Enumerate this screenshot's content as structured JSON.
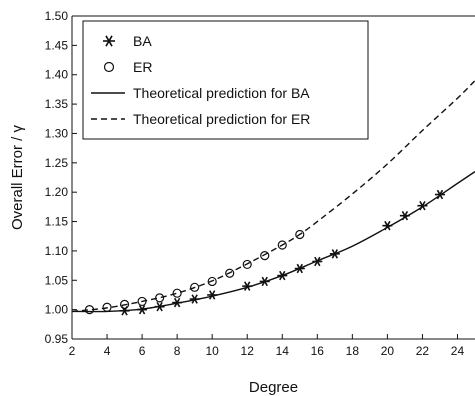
{
  "chart_data": {
    "type": "scatter",
    "title": "",
    "xlabel": "Degree",
    "ylabel": "Overall Error / γ",
    "xlim": [
      2,
      25
    ],
    "ylim": [
      0.95,
      1.5
    ],
    "xticks": [
      2,
      4,
      6,
      8,
      10,
      12,
      14,
      16,
      18,
      20,
      22,
      24
    ],
    "yticks": [
      0.95,
      1.0,
      1.05,
      1.1,
      1.15,
      1.2,
      1.25,
      1.3,
      1.35,
      1.4,
      1.45,
      1.5
    ],
    "legend_position": "top-left",
    "grid": false,
    "series": [
      {
        "name": "BA",
        "kind": "scatter",
        "marker": "asterisk",
        "x": [
          5,
          6,
          7,
          8,
          9,
          10,
          12,
          13,
          14,
          15,
          16,
          17,
          20,
          21,
          22,
          23
        ],
        "y": [
          0.998,
          1.0,
          1.005,
          1.012,
          1.018,
          1.025,
          1.04,
          1.048,
          1.058,
          1.07,
          1.082,
          1.095,
          1.143,
          1.16,
          1.177,
          1.196
        ]
      },
      {
        "name": "ER",
        "kind": "scatter",
        "marker": "circle",
        "x": [
          3,
          4,
          5,
          6,
          7,
          8,
          9,
          10,
          11,
          12,
          13,
          14,
          15
        ],
        "y": [
          1.0,
          1.004,
          1.009,
          1.014,
          1.02,
          1.028,
          1.038,
          1.048,
          1.062,
          1.077,
          1.092,
          1.11,
          1.128
        ]
      },
      {
        "name": "Theoretical prediction for BA",
        "kind": "line",
        "dash": "solid",
        "x": [
          2,
          4,
          6,
          8,
          10,
          12,
          14,
          16,
          18,
          20,
          22,
          24,
          25
        ],
        "y": [
          0.997,
          0.997,
          1.001,
          1.011,
          1.023,
          1.038,
          1.058,
          1.083,
          1.108,
          1.14,
          1.175,
          1.215,
          1.235
        ]
      },
      {
        "name": "Theoretical prediction for ER",
        "kind": "line",
        "dash": "dashed",
        "x": [
          2,
          4,
          6,
          8,
          10,
          12,
          14,
          15,
          16,
          18,
          20,
          22,
          24,
          25
        ],
        "y": [
          0.997,
          1.003,
          1.014,
          1.028,
          1.049,
          1.078,
          1.11,
          1.128,
          1.15,
          1.197,
          1.248,
          1.305,
          1.36,
          1.39
        ]
      }
    ],
    "colors": {
      "ink": "#111111",
      "background": "#ffffff"
    }
  }
}
